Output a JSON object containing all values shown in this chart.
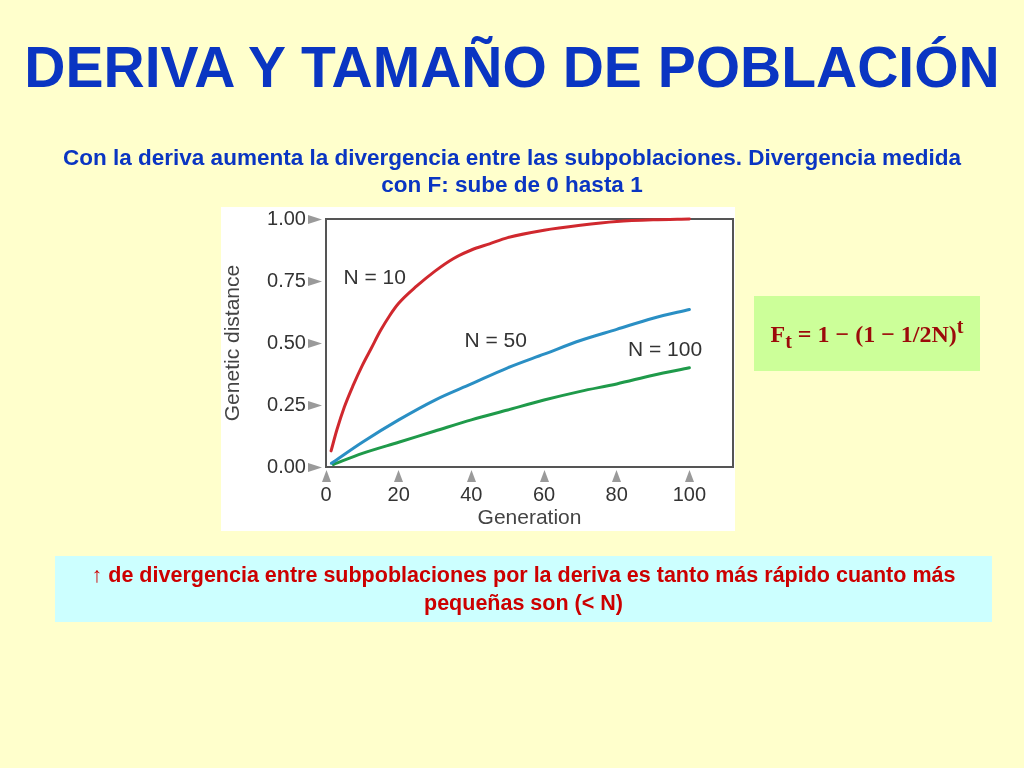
{
  "chart_data": {
    "type": "line",
    "title": "DERIVA Y TAMAÑO DE POBLACIÓN",
    "subtitle": "Con la deriva aumenta la divergencia entre las subpoblaciones. Divergencia medida con F: sube de 0 hasta 1",
    "xlabel": "Generation",
    "ylabel": "Genetic distance",
    "annotations": [
      "F$_{t}$ = 1 − (1 − 1/2N)$^{t}$",
      "↑ de divergencia entre subpoblaciones por la deriva es tanto más rápido cuanto más pequeñas son (< N)"
    ],
    "xlim": [
      0,
      112
    ],
    "ylim": [
      0,
      1
    ],
    "xticks": [
      0,
      20,
      40,
      60,
      80,
      100
    ],
    "yticks": [
      {
        "value": 0,
        "label": "0.00"
      },
      {
        "value": 0.25,
        "label": "0.25"
      },
      {
        "value": 0.5,
        "label": "0.50"
      },
      {
        "value": 0.75,
        "label": "0.75"
      },
      {
        "value": 1,
        "label": "1.00"
      }
    ],
    "series": [
      {
        "name": "N = 10",
        "color": "#d0282e",
        "x": [
          1.4,
          3,
          5,
          7.5,
          10,
          12.5,
          15,
          17.5,
          20,
          25,
          30,
          35,
          40,
          45,
          50,
          60,
          70,
          80,
          90,
          100
        ],
        "values": [
          0.065,
          0.15,
          0.24,
          0.33,
          0.41,
          0.48,
          0.55,
          0.61,
          0.66,
          0.73,
          0.79,
          0.84,
          0.875,
          0.9,
          0.925,
          0.955,
          0.975,
          0.99,
          0.997,
          1.0
        ]
      },
      {
        "name": "N = 50",
        "color": "#2a8fc4",
        "x": [
          1.5,
          10,
          20,
          30,
          40,
          50,
          60,
          70,
          80,
          90,
          100
        ],
        "values": [
          0.015,
          0.1,
          0.19,
          0.27,
          0.335,
          0.4,
          0.455,
          0.51,
          0.555,
          0.6,
          0.635
        ]
      },
      {
        "name": "N = 100",
        "color": "#1f9a4a",
        "x": [
          2,
          10,
          20,
          30,
          40,
          50,
          60,
          70,
          80,
          90,
          100
        ],
        "values": [
          0.01,
          0.055,
          0.1,
          0.145,
          0.19,
          0.23,
          0.27,
          0.305,
          0.335,
          0.37,
          0.4
        ]
      }
    ],
    "legend": false,
    "grid": false,
    "marker": "none",
    "line_style": "solid"
  }
}
